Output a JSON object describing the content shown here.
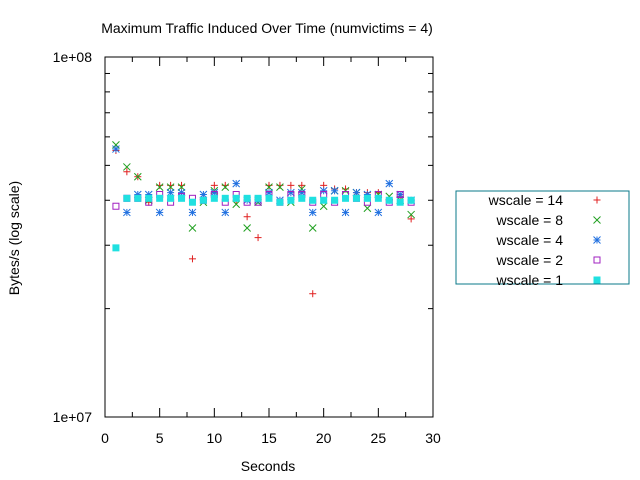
{
  "chart_data": {
    "type": "scatter",
    "title": "Maximum Traffic Induced Over Time (numvictims = 4)",
    "xlabel": "Seconds",
    "ylabel": "Bytes/s (log scale)",
    "xlim": [
      0,
      30
    ],
    "ylim": [
      10000000,
      100000000
    ],
    "yscale": "log",
    "xticks": [
      0,
      5,
      10,
      15,
      20,
      25,
      30
    ],
    "xtick_labels": [
      "0",
      "5",
      "10",
      "15",
      "20",
      "25",
      "30"
    ],
    "yticks": [
      10000000,
      100000000
    ],
    "ytick_labels": [
      "1e+07",
      "1e+08"
    ],
    "grid": false,
    "legend_position": "right",
    "series": [
      {
        "name": "wscale = 14",
        "marker": "plus",
        "color": "#e02020",
        "x": [
          1,
          2,
          3,
          4,
          5,
          6,
          7,
          8,
          9,
          10,
          11,
          12,
          13,
          14,
          15,
          16,
          17,
          18,
          19,
          20,
          21,
          22,
          23,
          24,
          25,
          26,
          27,
          28
        ],
        "y": [
          55000000,
          48000000,
          46500000,
          39500000,
          44000000,
          44000000,
          44000000,
          27500000,
          40000000,
          44000000,
          44000000,
          40000000,
          36000000,
          31500000,
          44000000,
          44000000,
          44000000,
          44000000,
          22000000,
          44000000,
          43000000,
          43000000,
          42000000,
          42000000,
          42000000,
          40000000,
          41000000,
          35500000
        ]
      },
      {
        "name": "wscale = 8",
        "marker": "x",
        "color": "#20a020",
        "x": [
          1,
          2,
          3,
          4,
          5,
          6,
          7,
          8,
          9,
          10,
          11,
          12,
          13,
          14,
          15,
          16,
          17,
          18,
          19,
          20,
          21,
          22,
          23,
          24,
          25,
          26,
          27,
          28
        ],
        "y": [
          57000000,
          49500000,
          46500000,
          40000000,
          43500000,
          43500000,
          43500000,
          33500000,
          39500000,
          42500000,
          43500000,
          39000000,
          33500000,
          39500000,
          43500000,
          43500000,
          39500000,
          43000000,
          33500000,
          38500000,
          42500000,
          42500000,
          42000000,
          38000000,
          41500000,
          41000000,
          40000000,
          36500000
        ]
      },
      {
        "name": "wscale = 4",
        "marker": "star",
        "color": "#2070e0",
        "x": [
          1,
          2,
          3,
          4,
          5,
          6,
          7,
          8,
          9,
          10,
          11,
          12,
          13,
          14,
          15,
          16,
          17,
          18,
          19,
          20,
          21,
          22,
          23,
          24,
          25,
          26,
          27,
          28
        ],
        "y": [
          55500000,
          37000000,
          41500000,
          41500000,
          37000000,
          42000000,
          42000000,
          37000000,
          41500000,
          42000000,
          37000000,
          44500000,
          40000000,
          40000000,
          42000000,
          40000000,
          42000000,
          42000000,
          37000000,
          42500000,
          42500000,
          37000000,
          42000000,
          41500000,
          37000000,
          44500000,
          41500000,
          40000000
        ]
      },
      {
        "name": "wscale = 2",
        "marker": "square",
        "color": "#a020c0",
        "x": [
          1,
          2,
          3,
          4,
          5,
          6,
          7,
          8,
          9,
          10,
          11,
          12,
          13,
          14,
          15,
          16,
          17,
          18,
          19,
          20,
          21,
          22,
          23,
          24,
          25,
          26,
          27,
          28
        ],
        "y": [
          38500000,
          40500000,
          40500000,
          39500000,
          41500000,
          39500000,
          41000000,
          40500000,
          40000000,
          41500000,
          39500000,
          41500000,
          39500000,
          39500000,
          41500000,
          39500000,
          41500000,
          41500000,
          39500000,
          41500000,
          39500000,
          41500000,
          40500000,
          39500000,
          41500000,
          39500000,
          41500000,
          39500000
        ]
      },
      {
        "name": "wscale = 1",
        "marker": "filled-square",
        "color": "#20e0e0",
        "x": [
          1,
          2,
          3,
          4,
          5,
          6,
          7,
          8,
          9,
          10,
          11,
          12,
          13,
          14,
          15,
          16,
          17,
          18,
          19,
          20,
          21,
          22,
          23,
          24,
          25,
          26,
          27,
          28
        ],
        "y": [
          29500000,
          40500000,
          40500000,
          40500000,
          40500000,
          40500000,
          40500000,
          39500000,
          40000000,
          40500000,
          40500000,
          40500000,
          40500000,
          40500000,
          40500000,
          39500000,
          40000000,
          40500000,
          40000000,
          40000000,
          40000000,
          40500000,
          40500000,
          40500000,
          40500000,
          40000000,
          39500000,
          40000000
        ]
      }
    ]
  }
}
